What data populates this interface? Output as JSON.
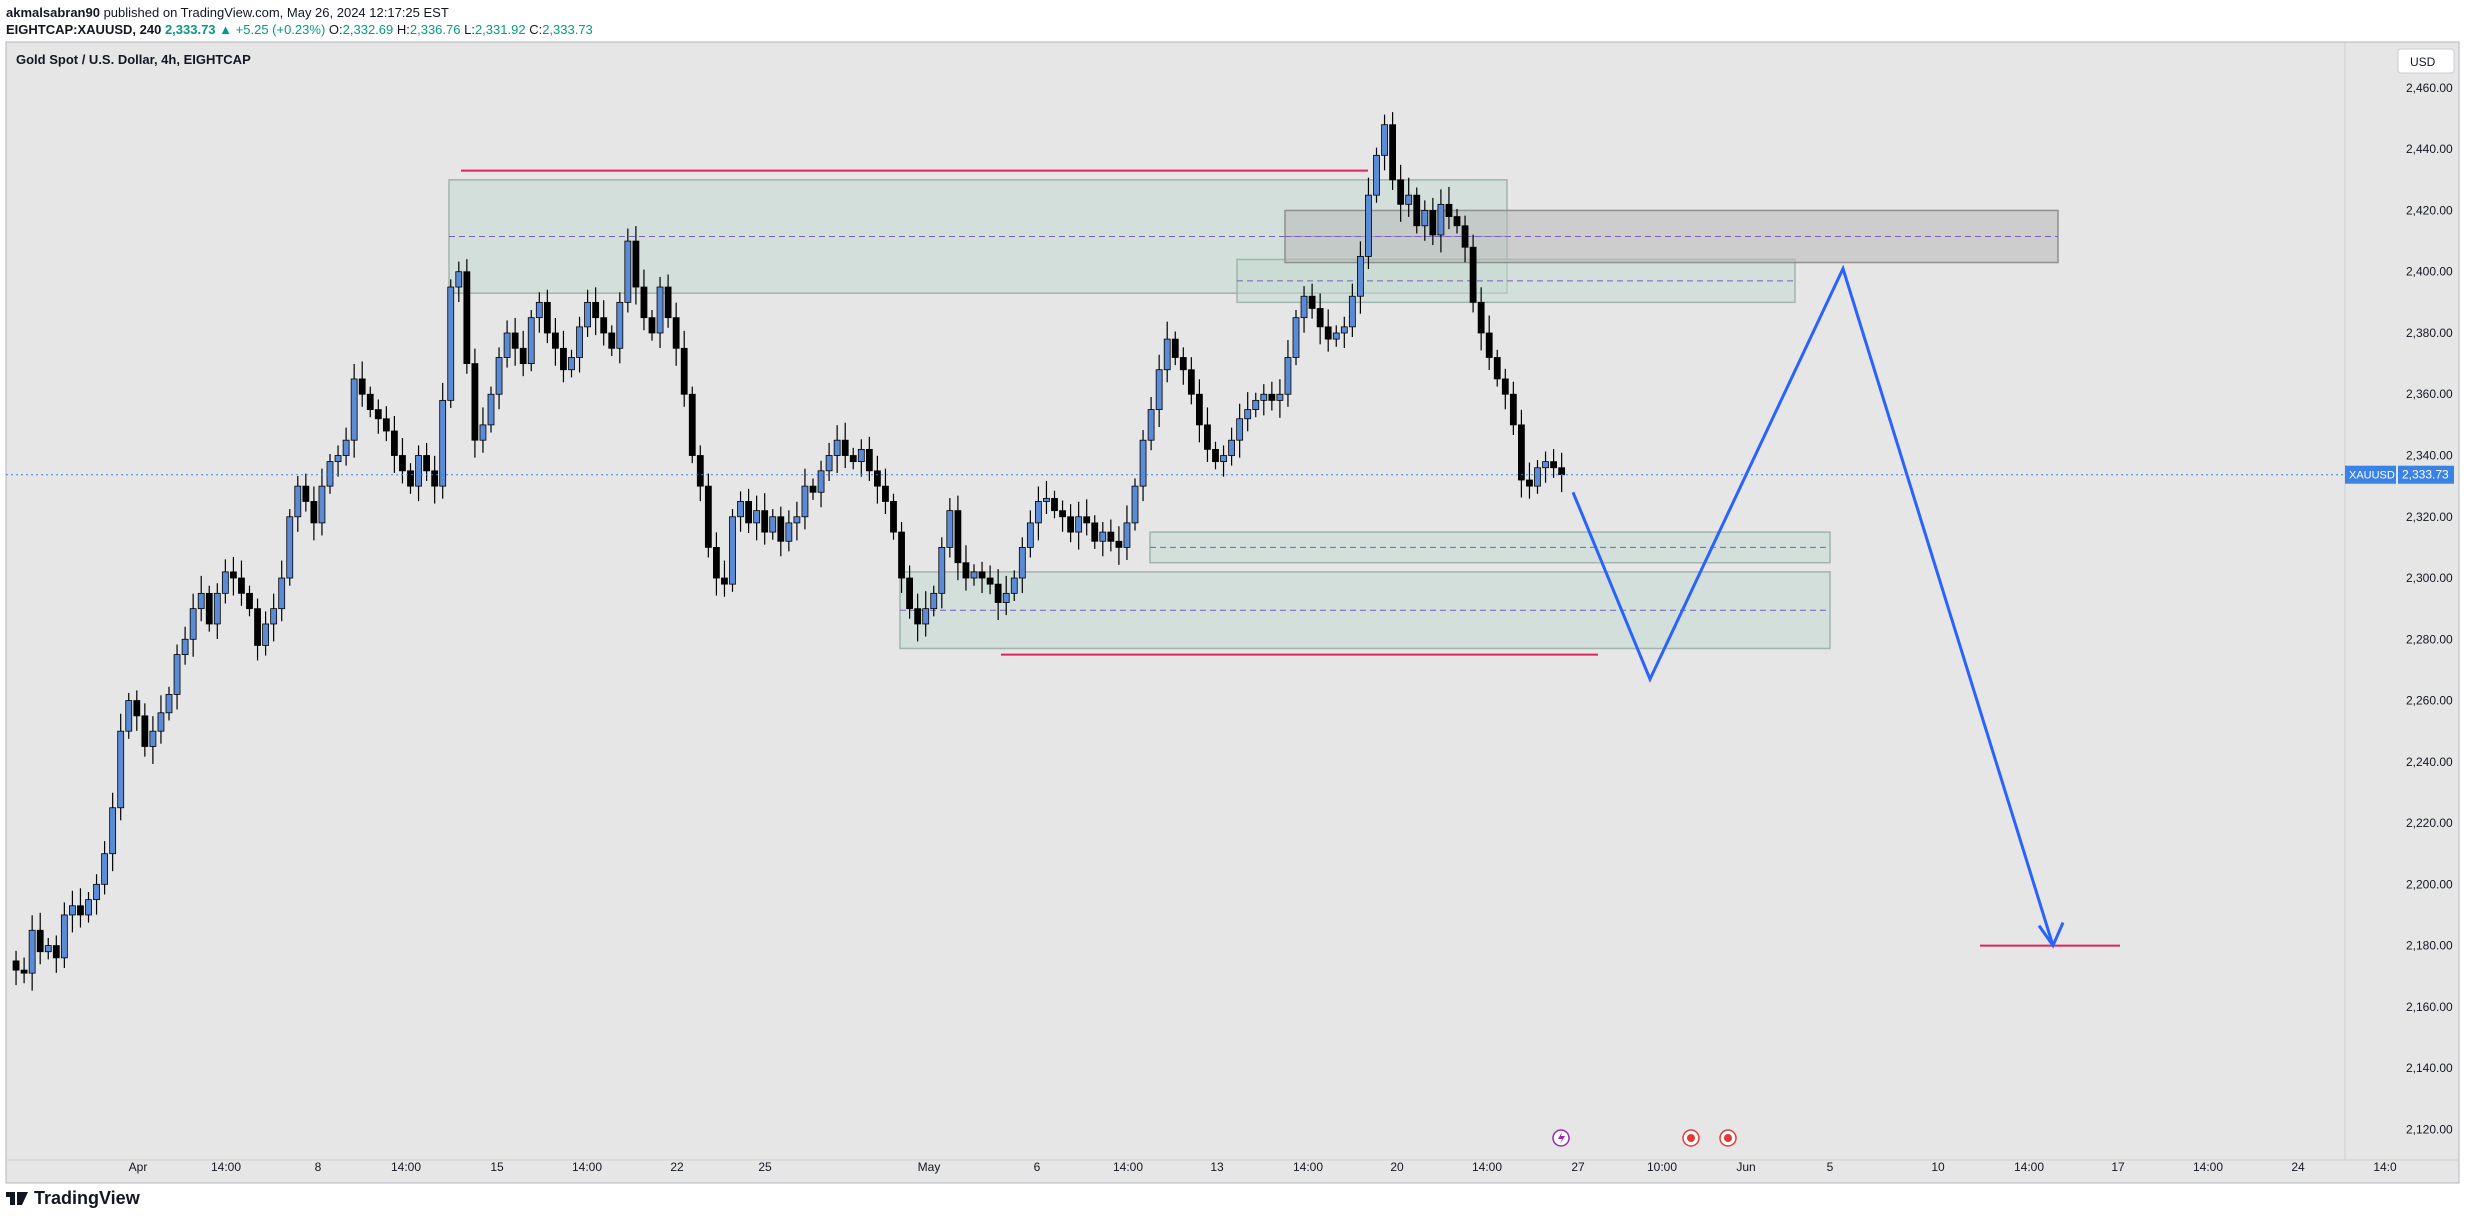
{
  "header": {
    "publisher": "akmalsabran90",
    "published_text": " published on TradingView.com, May 26, 2024 12:17:25 EST",
    "symbol": "EIGHTCAP:XAUUSD, 240",
    "last": "2,333.73",
    "change": "▲ +5.25 (+0.23%)",
    "o_label": "O:",
    "o": "2,332.69",
    "h_label": "H:",
    "h": "2,336.76",
    "l_label": "L:",
    "l": "2,331.92",
    "c_label": "C:",
    "c": "2,333.73"
  },
  "chart_title": "Gold Spot / U.S. Dollar, 4h, EIGHTCAP",
  "currency_button": "USD",
  "price_label": {
    "symbol": "XAUUSD",
    "value": "2,333.73"
  },
  "footer_brand": "TradingView",
  "colors": {
    "up": "#089981",
    "down": "#000000",
    "body_up": "#5b8bd4",
    "zone": "#c3d9d0",
    "zone_gray": "#b8b8b8",
    "red_line": "#e0245e",
    "blue_path": "#2962ff",
    "price_tag": "#3b82e6"
  },
  "chart_data": {
    "type": "candlestick",
    "title": "Gold Spot / U.S. Dollar, 4h, EIGHTCAP",
    "ylim": [
      2110,
      2475
    ],
    "y_ticks": [
      "2,460.00",
      "2,440.00",
      "2,420.00",
      "2,400.00",
      "2,380.00",
      "2,360.00",
      "2,340.00",
      "2,320.00",
      "2,300.00",
      "2,280.00",
      "2,260.00",
      "2,240.00",
      "2,220.00",
      "2,200.00",
      "2,180.00",
      "2,160.00",
      "2,140.00",
      "2,120.00"
    ],
    "x_ticks": [
      "Apr",
      "14:00",
      "8",
      "14:00",
      "15",
      "14:00",
      "22",
      "25",
      "May",
      "6",
      "14:00",
      "13",
      "14:00",
      "20",
      "14:00",
      "27",
      "10:00",
      "Jun",
      "5",
      "10",
      "14:00",
      "17",
      "14:00",
      "24",
      "14:0"
    ],
    "close_path": [
      [
        0,
        2175
      ],
      [
        1,
        2172
      ],
      [
        2,
        2171
      ],
      [
        3,
        2185
      ],
      [
        4,
        2178
      ],
      [
        5,
        2180
      ],
      [
        6,
        2176
      ],
      [
        7,
        2190
      ],
      [
        8,
        2193
      ],
      [
        9,
        2190
      ],
      [
        10,
        2195
      ],
      [
        11,
        2200
      ],
      [
        12,
        2210
      ],
      [
        13,
        2225
      ],
      [
        14,
        2250
      ],
      [
        15,
        2260
      ],
      [
        16,
        2255
      ],
      [
        17,
        2245
      ],
      [
        18,
        2250
      ],
      [
        19,
        2256
      ],
      [
        20,
        2262
      ],
      [
        21,
        2275
      ],
      [
        22,
        2280
      ],
      [
        23,
        2290
      ],
      [
        24,
        2295
      ],
      [
        25,
        2285
      ],
      [
        26,
        2295
      ],
      [
        27,
        2302
      ],
      [
        28,
        2300
      ],
      [
        29,
        2295
      ],
      [
        30,
        2290
      ],
      [
        31,
        2278
      ],
      [
        32,
        2285
      ],
      [
        33,
        2290
      ],
      [
        34,
        2300
      ],
      [
        35,
        2320
      ],
      [
        36,
        2330
      ],
      [
        37,
        2325
      ],
      [
        38,
        2318
      ],
      [
        39,
        2330
      ],
      [
        40,
        2338
      ],
      [
        41,
        2340
      ],
      [
        42,
        2345
      ],
      [
        43,
        2365
      ],
      [
        44,
        2360
      ],
      [
        45,
        2355
      ],
      [
        46,
        2352
      ],
      [
        47,
        2348
      ],
      [
        48,
        2340
      ],
      [
        49,
        2335
      ],
      [
        50,
        2330
      ],
      [
        51,
        2340
      ],
      [
        52,
        2335
      ],
      [
        53,
        2330
      ],
      [
        54,
        2358
      ],
      [
        55,
        2395
      ],
      [
        56,
        2400
      ],
      [
        57,
        2370
      ],
      [
        58,
        2345
      ],
      [
        59,
        2350
      ],
      [
        60,
        2360
      ],
      [
        61,
        2372
      ],
      [
        62,
        2380
      ],
      [
        63,
        2375
      ],
      [
        64,
        2370
      ],
      [
        65,
        2385
      ],
      [
        66,
        2390
      ],
      [
        67,
        2380
      ],
      [
        68,
        2375
      ],
      [
        69,
        2368
      ],
      [
        70,
        2372
      ],
      [
        71,
        2382
      ],
      [
        72,
        2390
      ],
      [
        73,
        2385
      ],
      [
        74,
        2380
      ],
      [
        75,
        2375
      ],
      [
        76,
        2390
      ],
      [
        77,
        2410
      ],
      [
        78,
        2395
      ],
      [
        79,
        2385
      ],
      [
        80,
        2380
      ],
      [
        81,
        2395
      ],
      [
        82,
        2385
      ],
      [
        83,
        2375
      ],
      [
        84,
        2360
      ],
      [
        85,
        2340
      ],
      [
        86,
        2330
      ],
      [
        87,
        2310
      ],
      [
        88,
        2300
      ],
      [
        89,
        2298
      ],
      [
        90,
        2320
      ],
      [
        91,
        2325
      ],
      [
        92,
        2318
      ],
      [
        93,
        2322
      ],
      [
        94,
        2315
      ],
      [
        95,
        2320
      ],
      [
        96,
        2312
      ],
      [
        97,
        2318
      ],
      [
        98,
        2320
      ],
      [
        99,
        2330
      ],
      [
        100,
        2328
      ],
      [
        101,
        2335
      ],
      [
        102,
        2340
      ],
      [
        103,
        2345
      ],
      [
        104,
        2340
      ],
      [
        105,
        2338
      ],
      [
        106,
        2342
      ],
      [
        107,
        2335
      ],
      [
        108,
        2330
      ],
      [
        109,
        2325
      ],
      [
        110,
        2315
      ],
      [
        111,
        2300
      ],
      [
        112,
        2290
      ],
      [
        113,
        2285
      ],
      [
        114,
        2290
      ],
      [
        115,
        2295
      ],
      [
        116,
        2310
      ],
      [
        117,
        2322
      ],
      [
        118,
        2305
      ],
      [
        119,
        2300
      ],
      [
        120,
        2302
      ],
      [
        121,
        2300
      ],
      [
        122,
        2298
      ],
      [
        123,
        2292
      ],
      [
        124,
        2295
      ],
      [
        125,
        2300
      ],
      [
        126,
        2310
      ],
      [
        127,
        2318
      ],
      [
        128,
        2325
      ],
      [
        129,
        2326
      ],
      [
        130,
        2322
      ],
      [
        131,
        2320
      ],
      [
        132,
        2315
      ],
      [
        133,
        2320
      ],
      [
        134,
        2318
      ],
      [
        135,
        2312
      ],
      [
        136,
        2315
      ],
      [
        137,
        2312
      ],
      [
        138,
        2310
      ],
      [
        139,
        2318
      ],
      [
        140,
        2330
      ],
      [
        141,
        2345
      ],
      [
        142,
        2355
      ],
      [
        143,
        2368
      ],
      [
        144,
        2378
      ],
      [
        145,
        2372
      ],
      [
        146,
        2368
      ],
      [
        147,
        2360
      ],
      [
        148,
        2350
      ],
      [
        149,
        2342
      ],
      [
        150,
        2338
      ],
      [
        151,
        2340
      ],
      [
        152,
        2345
      ],
      [
        153,
        2352
      ],
      [
        154,
        2355
      ],
      [
        155,
        2358
      ],
      [
        156,
        2360
      ],
      [
        157,
        2358
      ],
      [
        158,
        2360
      ],
      [
        159,
        2372
      ],
      [
        160,
        2385
      ],
      [
        161,
        2392
      ],
      [
        162,
        2388
      ],
      [
        163,
        2382
      ],
      [
        164,
        2378
      ],
      [
        165,
        2380
      ],
      [
        166,
        2382
      ],
      [
        167,
        2392
      ],
      [
        168,
        2405
      ],
      [
        169,
        2425
      ],
      [
        170,
        2438
      ],
      [
        171,
        2448
      ],
      [
        172,
        2430
      ],
      [
        173,
        2422
      ],
      [
        174,
        2425
      ],
      [
        175,
        2415
      ],
      [
        176,
        2420
      ],
      [
        177,
        2412
      ],
      [
        178,
        2422
      ],
      [
        179,
        2418
      ],
      [
        180,
        2415
      ],
      [
        181,
        2408
      ],
      [
        182,
        2390
      ],
      [
        183,
        2380
      ],
      [
        184,
        2372
      ],
      [
        185,
        2365
      ],
      [
        186,
        2360
      ],
      [
        187,
        2350
      ],
      [
        188,
        2332
      ],
      [
        189,
        2330
      ],
      [
        190,
        2336
      ],
      [
        191,
        2338
      ],
      [
        192,
        2336
      ],
      [
        193,
        2333.73
      ]
    ],
    "zones": [
      {
        "name": "upper-demand-zone",
        "y_top": 2430,
        "y_bottom": 2393
      },
      {
        "name": "mid-zone",
        "y_top": 2404,
        "y_bottom": 2390
      },
      {
        "name": "supply-zone-gray",
        "y_top": 2420,
        "y_bottom": 2403
      },
      {
        "name": "lower-zone-1",
        "y_top": 2315,
        "y_bottom": 2305
      },
      {
        "name": "lower-zone-2",
        "y_top": 2302,
        "y_bottom": 2277
      }
    ],
    "levels": [
      {
        "name": "resistance-line",
        "value": 2433
      },
      {
        "name": "support-line",
        "value": 2275
      },
      {
        "name": "target-line",
        "value": 2180
      }
    ],
    "projection_path": [
      2328,
      2267,
      2401,
      2180
    ],
    "last_price": 2333.73
  }
}
